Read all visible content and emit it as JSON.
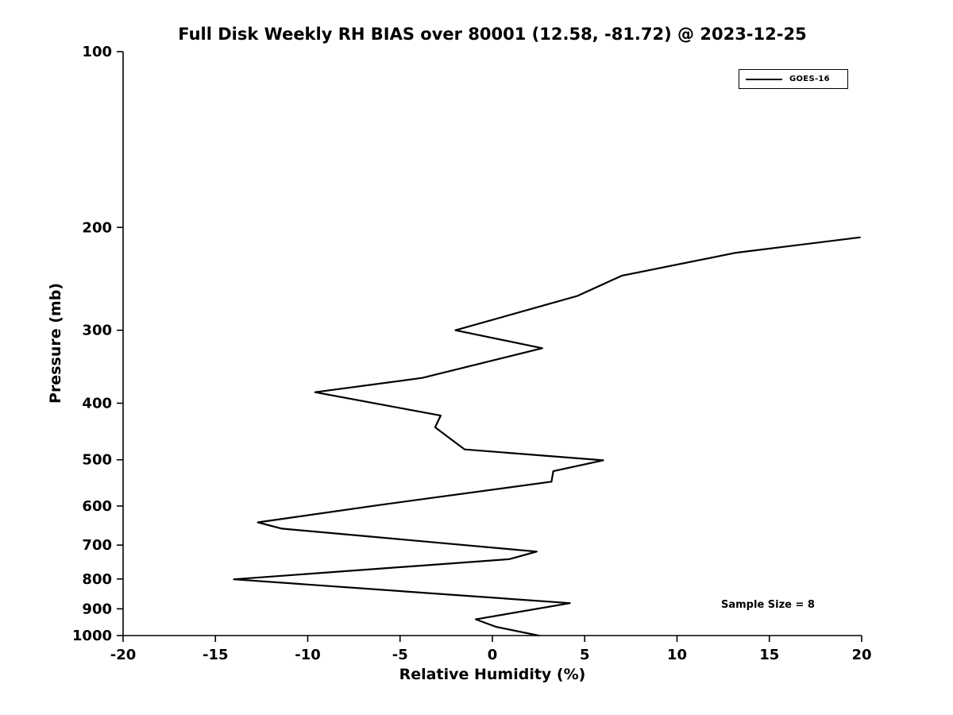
{
  "chart_data": {
    "type": "line",
    "title": "Full Disk Weekly RH BIAS over 80001 (12.58, -81.72) @ 2023-12-25",
    "xlabel": "Relative Humidity (%)",
    "ylabel": "Pressure (mb)",
    "xlim": [
      -20,
      20
    ],
    "ylim": [
      100,
      1000
    ],
    "y_scale": "log",
    "y_inverted": true,
    "grid": false,
    "xticks": [
      -20,
      -15,
      -10,
      -5,
      0,
      5,
      10,
      15,
      20
    ],
    "yticks": [
      100,
      200,
      300,
      400,
      500,
      600,
      700,
      800,
      900,
      1000
    ],
    "legend": {
      "position": "top-right",
      "entries": [
        {
          "name": "GOES-16",
          "color": "#000000",
          "line_width": 2
        }
      ]
    },
    "annotation": "Sample Size = 8",
    "series": [
      {
        "name": "GOES-16",
        "color": "#000000",
        "points": [
          [
            19.9,
            208
          ],
          [
            13.2,
            221
          ],
          [
            7.0,
            242
          ],
          [
            4.6,
            262
          ],
          [
            -2.0,
            300
          ],
          [
            2.7,
            322
          ],
          [
            -3.8,
            362
          ],
          [
            -9.6,
            383
          ],
          [
            -2.8,
            420
          ],
          [
            -3.1,
            440
          ],
          [
            -1.5,
            480
          ],
          [
            6.0,
            501
          ],
          [
            3.3,
            523
          ],
          [
            3.2,
            545
          ],
          [
            -6.0,
            597
          ],
          [
            -12.7,
            640
          ],
          [
            -11.4,
            656
          ],
          [
            2.4,
            718
          ],
          [
            0.9,
            740
          ],
          [
            -14.0,
            801
          ],
          [
            4.2,
            880
          ],
          [
            -0.9,
            938
          ],
          [
            0.2,
            966
          ],
          [
            2.5,
            1000
          ]
        ]
      }
    ]
  }
}
